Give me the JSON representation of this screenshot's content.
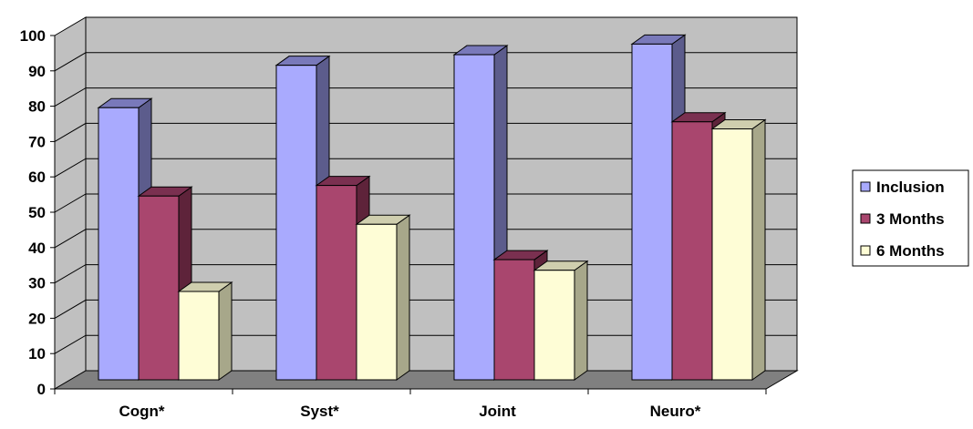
{
  "chart_data": {
    "type": "bar",
    "style": "3d-clustered-column",
    "title": "",
    "xlabel": "",
    "ylabel": "",
    "categories": [
      "Cogn*",
      "Syst*",
      "Joint",
      "Neuro*"
    ],
    "series": [
      {
        "name": "Inclusion",
        "values": [
          77,
          89,
          92,
          95
        ]
      },
      {
        "name": "3 Months",
        "values": [
          52,
          55,
          34,
          73
        ]
      },
      {
        "name": "6 Months",
        "values": [
          25,
          44,
          31,
          71
        ]
      }
    ],
    "ylim": [
      0,
      100
    ],
    "yticks": [
      "0",
      "10",
      "20",
      "30",
      "40",
      "50",
      "60",
      "70",
      "80",
      "90",
      "100"
    ],
    "grid": true,
    "legend_position": "right",
    "colors": {
      "series": [
        "#A9AAFE",
        "#A9466E",
        "#FEFDD6"
      ],
      "series_side": [
        "#5C5C8C",
        "#5E233A",
        "#A7A78A"
      ],
      "series_top": [
        "#7979BA",
        "#7A3050",
        "#CFCEAE"
      ],
      "wall": "#C0C0C0",
      "floor": "#808080",
      "grid": "#000000"
    }
  }
}
